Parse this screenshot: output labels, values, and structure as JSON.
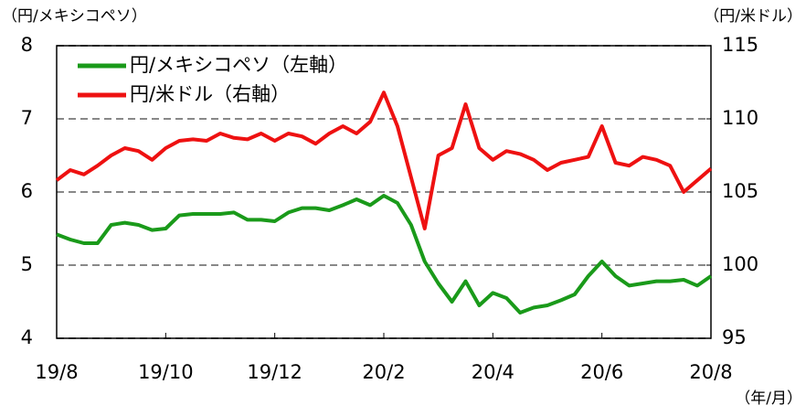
{
  "chart_data": {
    "type": "line",
    "y_unit_label": "（円/メキシコペソ）",
    "y2_unit_label": "（円/米ドル）",
    "x_unit_label": "（年/月）",
    "categories": [
      "19/8",
      null,
      null,
      null,
      null,
      null,
      null,
      null,
      "19/10",
      null,
      null,
      null,
      null,
      null,
      null,
      null,
      "19/12",
      null,
      null,
      null,
      null,
      null,
      null,
      null,
      "20/2",
      null,
      null,
      null,
      null,
      null,
      null,
      null,
      "20/4",
      null,
      null,
      null,
      null,
      null,
      null,
      null,
      "20/6",
      null,
      null,
      null,
      null,
      null,
      null,
      null,
      "20/8"
    ],
    "series": [
      {
        "name": "円/メキシコペソ（左軸）",
        "color": "#1a9a1a",
        "axis": "y",
        "values": [
          5.42,
          5.35,
          5.3,
          5.3,
          5.55,
          5.58,
          5.55,
          5.48,
          5.5,
          5.68,
          5.7,
          5.7,
          5.7,
          5.72,
          5.62,
          5.62,
          5.6,
          5.72,
          5.78,
          5.78,
          5.75,
          5.82,
          5.9,
          5.82,
          5.95,
          5.85,
          5.55,
          5.05,
          4.75,
          4.5,
          4.78,
          4.45,
          4.62,
          4.55,
          4.35,
          4.42,
          4.45,
          4.52,
          4.6,
          4.85,
          5.05,
          4.85,
          4.72,
          4.75,
          4.78,
          4.78,
          4.8,
          4.72,
          4.85
        ]
      },
      {
        "name": "円/米ドル（右軸）",
        "color": "#ee1111",
        "axis": "y2",
        "values": [
          105.8,
          106.5,
          106.2,
          106.8,
          107.5,
          108.0,
          107.8,
          107.2,
          108.0,
          108.5,
          108.6,
          108.5,
          109.0,
          108.7,
          108.6,
          109.0,
          108.5,
          109.0,
          108.8,
          108.3,
          109.0,
          109.5,
          109.0,
          109.8,
          111.8,
          109.5,
          106.0,
          102.5,
          107.5,
          108.0,
          111.0,
          108.0,
          107.2,
          107.8,
          107.6,
          107.2,
          106.5,
          107.0,
          107.2,
          107.4,
          109.5,
          107.0,
          106.8,
          107.4,
          107.2,
          106.8,
          105.0,
          105.8,
          106.6
        ]
      }
    ],
    "ylim": [
      4,
      8
    ],
    "yticks": [
      4,
      5,
      6,
      7,
      8
    ],
    "y2lim": [
      95,
      115
    ],
    "y2ticks": [
      95,
      100,
      105,
      110,
      115
    ],
    "grid": true,
    "legend": "top-left"
  }
}
